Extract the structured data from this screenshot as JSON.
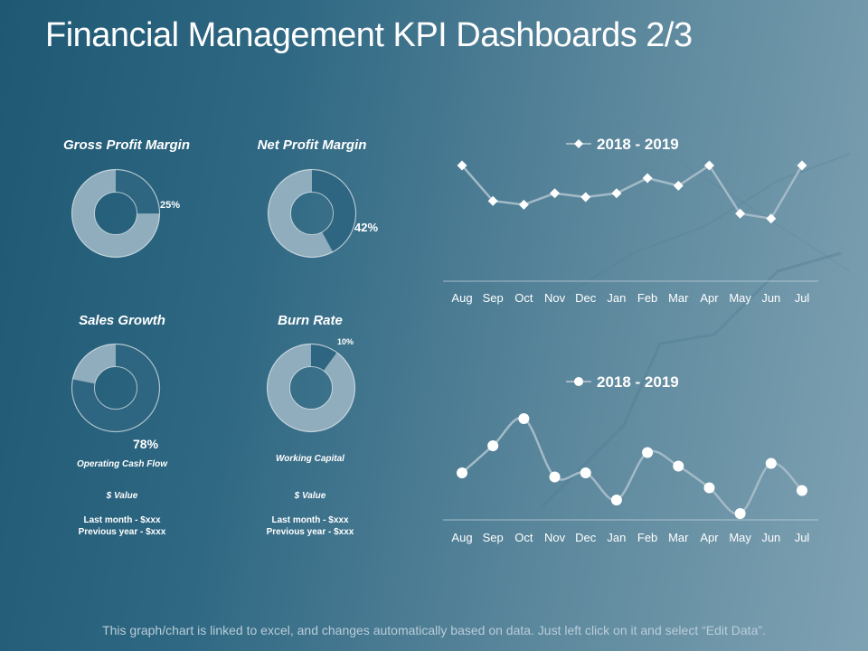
{
  "title": "Financial Management KPI Dashboards 2/3",
  "footer": "This graph/chart is linked to excel, and changes automatically based on data. Just left click on it and select “Edit Data”.",
  "kpis": [
    {
      "title": "Gross Profit Margin",
      "percent": 25,
      "label": "25%"
    },
    {
      "title": "Net Profit Margin",
      "percent": 42,
      "label": "42%"
    },
    {
      "title": "Sales Growth",
      "percent": 78,
      "label": "78%",
      "subtitle": "Operating Cash Flow",
      "value": "$ Value",
      "last_month": "Last month - $xxx",
      "previous_year": "Previous year - $xxx"
    },
    {
      "title": "Burn Rate",
      "percent": 10,
      "label": "10%",
      "subtitle": "Working Capital",
      "value": "$ Value",
      "last_month": "Last month - $xxx",
      "previous_year": "Previous year - $xxx"
    }
  ],
  "colors": {
    "donut_filled": "#2e6580",
    "donut_rest": "#8fadbd",
    "line": "#a3bac7",
    "marker": "#ffffff",
    "axis": "#c9d8e0"
  },
  "chart_data": [
    {
      "type": "line",
      "marker": "diamond",
      "title": "",
      "legend": "2018 - 2019",
      "legend_position": "top",
      "categories": [
        "Aug",
        "Sep",
        "Oct",
        "Nov",
        "Dec",
        "Jan",
        "Feb",
        "Mar",
        "Apr",
        "May",
        "Jun",
        "Jul"
      ],
      "series": [
        {
          "name": "2018 - 2019",
          "values": [
            80,
            52,
            49,
            58,
            55,
            58,
            70,
            64,
            80,
            42,
            38,
            80
          ]
        }
      ],
      "ylim": [
        0,
        100
      ],
      "xlabel": "",
      "ylabel": "",
      "grid": false,
      "smooth": false
    },
    {
      "type": "line",
      "marker": "circle",
      "title": "",
      "legend": "2018 - 2019",
      "legend_position": "top",
      "categories": [
        "Aug",
        "Sep",
        "Oct",
        "Nov",
        "Dec",
        "Jan",
        "Feb",
        "Mar",
        "Apr",
        "May",
        "Jun",
        "Jul"
      ],
      "series": [
        {
          "name": "2018 - 2019",
          "values": [
            40,
            60,
            80,
            37,
            40,
            20,
            55,
            45,
            29,
            10,
            47,
            27
          ]
        }
      ],
      "ylim": [
        0,
        100
      ],
      "xlabel": "",
      "ylabel": "",
      "grid": false,
      "smooth": true
    }
  ]
}
